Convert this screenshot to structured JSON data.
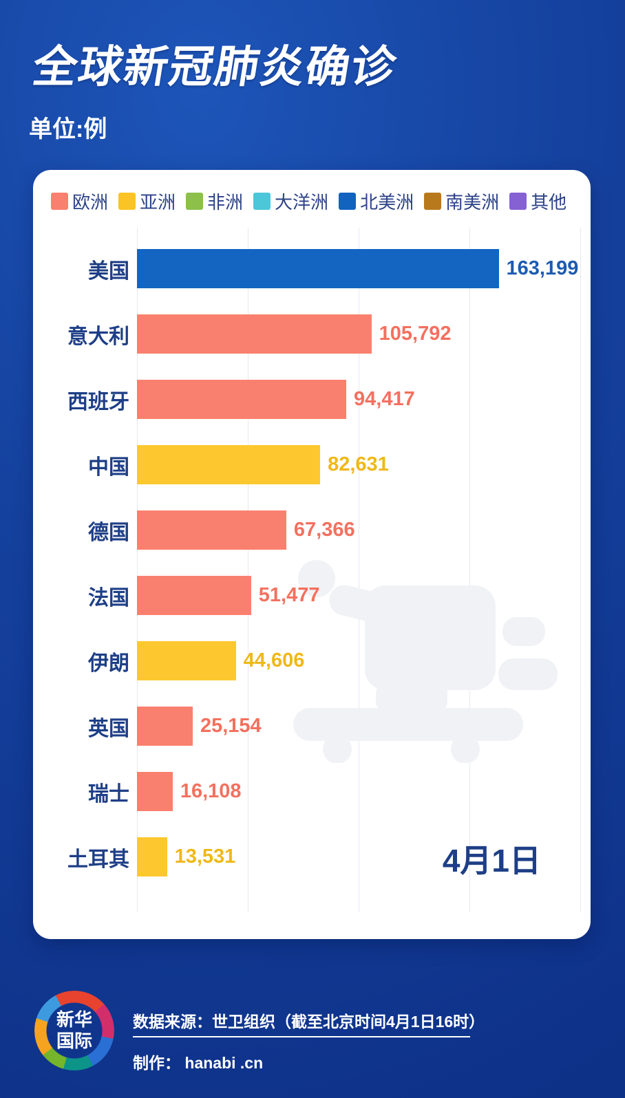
{
  "header": {
    "title": "全球新冠肺炎确诊",
    "subtitle": "单位:例"
  },
  "legend": [
    {
      "label": "欧洲",
      "color": "#f9806e"
    },
    {
      "label": "亚洲",
      "color": "#fbc324"
    },
    {
      "label": "非洲",
      "color": "#8cc04b"
    },
    {
      "label": "大洋洲",
      "color": "#4cc6d9"
    },
    {
      "label": "北美洲",
      "color": "#1263c0"
    },
    {
      "label": "南美洲",
      "color": "#b8791c"
    },
    {
      "label": "其他",
      "color": "#8561d3"
    }
  ],
  "chart_data": {
    "type": "bar",
    "orientation": "horizontal",
    "title": "全球新冠肺炎确诊",
    "unit": "例",
    "xlim": [
      0,
      200000
    ],
    "gridline_values": [
      0,
      50000,
      100000,
      150000,
      200000
    ],
    "grid": true,
    "legend_position": "top",
    "annotation": "4月1日",
    "bars": [
      {
        "country": "美国",
        "continent": "北美洲",
        "value": 163199,
        "label": "163,199",
        "bar_color": "#1365c1",
        "label_color": "#1d5bb0"
      },
      {
        "country": "意大利",
        "continent": "欧洲",
        "value": 105792,
        "label": "105,792",
        "bar_color": "#f9806e",
        "label_color": "#f4705f"
      },
      {
        "country": "西班牙",
        "continent": "欧洲",
        "value": 94417,
        "label": "94,417",
        "bar_color": "#f9806e",
        "label_color": "#f4705f"
      },
      {
        "country": "中国",
        "continent": "亚洲",
        "value": 82631,
        "label": "82,631",
        "bar_color": "#fdc82f",
        "label_color": "#f0b818"
      },
      {
        "country": "德国",
        "continent": "欧洲",
        "value": 67366,
        "label": "67,366",
        "bar_color": "#f9806e",
        "label_color": "#f4705f"
      },
      {
        "country": "法国",
        "continent": "欧洲",
        "value": 51477,
        "label": "51,477",
        "bar_color": "#f9806e",
        "label_color": "#f4705f"
      },
      {
        "country": "伊朗",
        "continent": "亚洲",
        "value": 44606,
        "label": "44,606",
        "bar_color": "#fdc82f",
        "label_color": "#f0b818"
      },
      {
        "country": "英国",
        "continent": "欧洲",
        "value": 25154,
        "label": "25,154",
        "bar_color": "#f9806e",
        "label_color": "#f4705f"
      },
      {
        "country": "瑞士",
        "continent": "欧洲",
        "value": 16108,
        "label": "16,108",
        "bar_color": "#f9806e",
        "label_color": "#f4705f"
      },
      {
        "country": "土耳其",
        "continent": "亚洲",
        "value": 13531,
        "label": "13,531",
        "bar_color": "#fdc82f",
        "label_color": "#f0b818"
      }
    ]
  },
  "footer": {
    "logo_line1": "新华",
    "logo_line2": "国际",
    "source": "数据来源：世卫组织（截至北京时间4月1日16时）",
    "credit": "制作： hanabi .cn"
  },
  "colors": {
    "background_top": "#1d55b8",
    "background_bottom": "#0e3188",
    "card": "#ffffff",
    "label_navy": "#1e3f87",
    "legend_text": "#2c4288",
    "gridline": "#e7e9f0",
    "watermark": "#f1f2f6"
  }
}
